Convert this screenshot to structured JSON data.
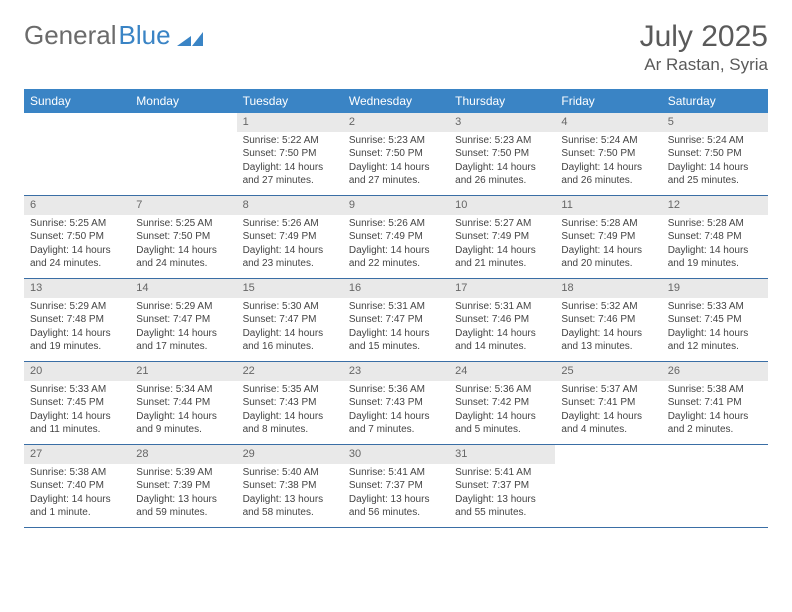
{
  "logo": {
    "part1": "General",
    "part2": "Blue"
  },
  "title": "July 2025",
  "location": "Ar Rastan, Syria",
  "dayNames": [
    "Sunday",
    "Monday",
    "Tuesday",
    "Wednesday",
    "Thursday",
    "Friday",
    "Saturday"
  ],
  "colors": {
    "headerBar": "#3a84c5",
    "rowDivider": "#3a6ea5",
    "numBg": "#e9e9e9",
    "textGray": "#5a5a5a"
  },
  "weeks": [
    [
      null,
      null,
      {
        "n": 1,
        "sr": "5:22 AM",
        "ss": "7:50 PM",
        "dl": "14 hours and 27 minutes."
      },
      {
        "n": 2,
        "sr": "5:23 AM",
        "ss": "7:50 PM",
        "dl": "14 hours and 27 minutes."
      },
      {
        "n": 3,
        "sr": "5:23 AM",
        "ss": "7:50 PM",
        "dl": "14 hours and 26 minutes."
      },
      {
        "n": 4,
        "sr": "5:24 AM",
        "ss": "7:50 PM",
        "dl": "14 hours and 26 minutes."
      },
      {
        "n": 5,
        "sr": "5:24 AM",
        "ss": "7:50 PM",
        "dl": "14 hours and 25 minutes."
      }
    ],
    [
      {
        "n": 6,
        "sr": "5:25 AM",
        "ss": "7:50 PM",
        "dl": "14 hours and 24 minutes."
      },
      {
        "n": 7,
        "sr": "5:25 AM",
        "ss": "7:50 PM",
        "dl": "14 hours and 24 minutes."
      },
      {
        "n": 8,
        "sr": "5:26 AM",
        "ss": "7:49 PM",
        "dl": "14 hours and 23 minutes."
      },
      {
        "n": 9,
        "sr": "5:26 AM",
        "ss": "7:49 PM",
        "dl": "14 hours and 22 minutes."
      },
      {
        "n": 10,
        "sr": "5:27 AM",
        "ss": "7:49 PM",
        "dl": "14 hours and 21 minutes."
      },
      {
        "n": 11,
        "sr": "5:28 AM",
        "ss": "7:49 PM",
        "dl": "14 hours and 20 minutes."
      },
      {
        "n": 12,
        "sr": "5:28 AM",
        "ss": "7:48 PM",
        "dl": "14 hours and 19 minutes."
      }
    ],
    [
      {
        "n": 13,
        "sr": "5:29 AM",
        "ss": "7:48 PM",
        "dl": "14 hours and 19 minutes."
      },
      {
        "n": 14,
        "sr": "5:29 AM",
        "ss": "7:47 PM",
        "dl": "14 hours and 17 minutes."
      },
      {
        "n": 15,
        "sr": "5:30 AM",
        "ss": "7:47 PM",
        "dl": "14 hours and 16 minutes."
      },
      {
        "n": 16,
        "sr": "5:31 AM",
        "ss": "7:47 PM",
        "dl": "14 hours and 15 minutes."
      },
      {
        "n": 17,
        "sr": "5:31 AM",
        "ss": "7:46 PM",
        "dl": "14 hours and 14 minutes."
      },
      {
        "n": 18,
        "sr": "5:32 AM",
        "ss": "7:46 PM",
        "dl": "14 hours and 13 minutes."
      },
      {
        "n": 19,
        "sr": "5:33 AM",
        "ss": "7:45 PM",
        "dl": "14 hours and 12 minutes."
      }
    ],
    [
      {
        "n": 20,
        "sr": "5:33 AM",
        "ss": "7:45 PM",
        "dl": "14 hours and 11 minutes."
      },
      {
        "n": 21,
        "sr": "5:34 AM",
        "ss": "7:44 PM",
        "dl": "14 hours and 9 minutes."
      },
      {
        "n": 22,
        "sr": "5:35 AM",
        "ss": "7:43 PM",
        "dl": "14 hours and 8 minutes."
      },
      {
        "n": 23,
        "sr": "5:36 AM",
        "ss": "7:43 PM",
        "dl": "14 hours and 7 minutes."
      },
      {
        "n": 24,
        "sr": "5:36 AM",
        "ss": "7:42 PM",
        "dl": "14 hours and 5 minutes."
      },
      {
        "n": 25,
        "sr": "5:37 AM",
        "ss": "7:41 PM",
        "dl": "14 hours and 4 minutes."
      },
      {
        "n": 26,
        "sr": "5:38 AM",
        "ss": "7:41 PM",
        "dl": "14 hours and 2 minutes."
      }
    ],
    [
      {
        "n": 27,
        "sr": "5:38 AM",
        "ss": "7:40 PM",
        "dl": "14 hours and 1 minute."
      },
      {
        "n": 28,
        "sr": "5:39 AM",
        "ss": "7:39 PM",
        "dl": "13 hours and 59 minutes."
      },
      {
        "n": 29,
        "sr": "5:40 AM",
        "ss": "7:38 PM",
        "dl": "13 hours and 58 minutes."
      },
      {
        "n": 30,
        "sr": "5:41 AM",
        "ss": "7:37 PM",
        "dl": "13 hours and 56 minutes."
      },
      {
        "n": 31,
        "sr": "5:41 AM",
        "ss": "7:37 PM",
        "dl": "13 hours and 55 minutes."
      },
      null,
      null
    ]
  ],
  "labels": {
    "sunrise": "Sunrise:",
    "sunset": "Sunset:",
    "daylight": "Daylight:"
  }
}
